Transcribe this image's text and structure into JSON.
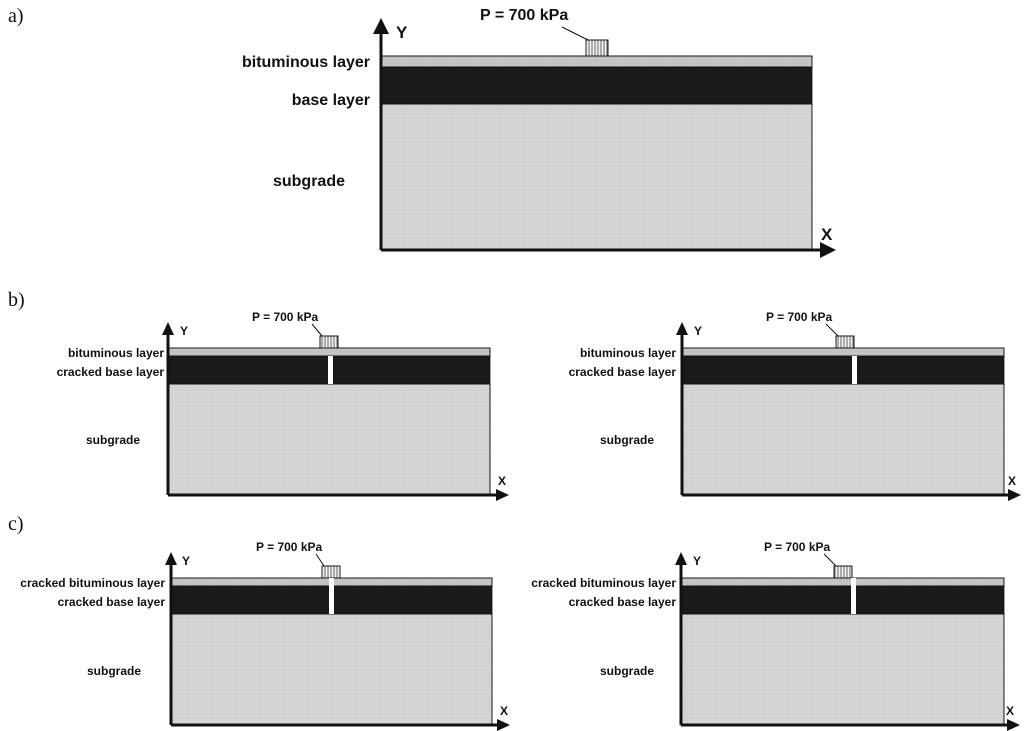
{
  "colors": {
    "bituminous": "#c6c6c6",
    "base": "#1a1a1a",
    "subgrade": "#d6d6d6",
    "line": "#111111",
    "load": "#f2f2f2",
    "crack": "#ffffff"
  },
  "panels": [
    {
      "letter": "a)",
      "load_label": "P = 700 kPa",
      "axis_x": "X",
      "axis_y": "Y",
      "labels": {
        "top": "bituminous layer",
        "base": "base layer",
        "sub": "subgrade"
      },
      "cracks": {
        "bituminous": false,
        "base": false
      }
    },
    {
      "letter": "b)",
      "load_label": "P = 700 kPa",
      "axis_x": "X",
      "axis_y": "Y",
      "labels": {
        "top": "bituminous layer",
        "base": "cracked base layer",
        "sub": "subgrade"
      },
      "cracks": {
        "bituminous": false,
        "base": true
      }
    },
    {
      "letter": "",
      "load_label": "P = 700 kPa",
      "axis_x": "X",
      "axis_y": "Y",
      "labels": {
        "top": "bituminous layer",
        "base": "cracked base layer",
        "sub": "subgrade"
      },
      "cracks": {
        "bituminous": false,
        "base": true
      }
    },
    {
      "letter": "c)",
      "load_label": "P = 700 kPa",
      "axis_x": "X",
      "axis_y": "Y",
      "labels": {
        "top": "cracked bituminous layer",
        "base": "cracked base layer",
        "sub": "subgrade"
      },
      "cracks": {
        "bituminous": true,
        "base": true
      }
    },
    {
      "letter": "",
      "load_label": "P = 700 kPa",
      "axis_x": "X",
      "axis_y": "Y",
      "labels": {
        "top": "cracked bituminous layer",
        "base": "cracked base layer",
        "sub": "subgrade"
      },
      "cracks": {
        "bituminous": true,
        "base": true
      }
    }
  ]
}
